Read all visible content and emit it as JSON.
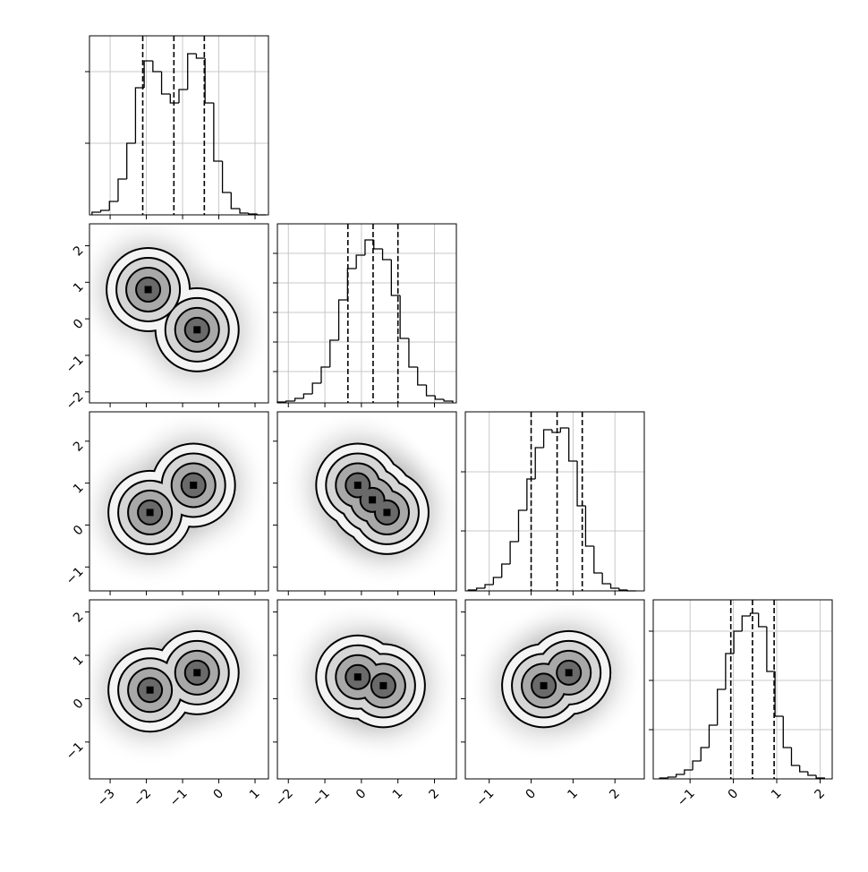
{
  "chart_data": {
    "type": "corner",
    "parameters": [
      {
        "lim": [
          -3.57,
          1.37
        ],
        "ticks": [
          {
            "value": -3,
            "label": "−3"
          },
          {
            "value": -2,
            "label": "−2"
          },
          {
            "value": -1,
            "label": "−1"
          },
          0,
          1
        ],
        "bins": [
          -3.5,
          -3.26,
          -3.02,
          -2.78,
          -2.54,
          -2.3,
          -2.06,
          -1.82,
          -1.58,
          -1.34,
          -1.1,
          -0.86,
          -0.62,
          -0.38,
          -0.14,
          0.1,
          0.34,
          0.58,
          0.82,
          1.06,
          1.3
        ],
        "counts": [
          3,
          5,
          15,
          40,
          80,
          142,
          172,
          160,
          135,
          125,
          140,
          180,
          175,
          125,
          60,
          25,
          7,
          2,
          1,
          0
        ],
        "quantiles": [
          -2.1,
          -1.24,
          -0.4
        ],
        "hist_ylim": [
          0,
          200
        ],
        "hist_yticks": [
          80,
          160
        ]
      },
      {
        "lim": [
          -2.3,
          2.6
        ],
        "ticks": [
          {
            "value": -2,
            "label": "−2"
          },
          {
            "value": -1,
            "label": "−1"
          },
          0,
          1,
          2
        ],
        "bins": [
          -2.3,
          -2.06,
          -1.82,
          -1.58,
          -1.34,
          -1.1,
          -0.86,
          -0.62,
          -0.38,
          -0.14,
          0.1,
          0.34,
          0.58,
          0.82,
          1.06,
          1.3,
          1.54,
          1.78,
          2.02,
          2.26,
          2.5
        ],
        "counts": [
          1,
          2,
          5,
          10,
          22,
          40,
          70,
          115,
          150,
          165,
          182,
          172,
          160,
          120,
          72,
          40,
          20,
          8,
          4,
          2
        ],
        "quantiles": [
          -0.37,
          0.32,
          1.0
        ],
        "hist_ylim": [
          0,
          200
        ],
        "hist_yticks": [
          35,
          68,
          101,
          134,
          167
        ]
      },
      {
        "lim": [
          -1.57,
          2.7
        ],
        "ticks": [
          {
            "value": -1,
            "label": "−1"
          },
          0,
          1,
          2
        ],
        "bins": [
          -1.5,
          -1.3,
          -1.1,
          -0.9,
          -0.7,
          -0.5,
          -0.3,
          -0.1,
          0.1,
          0.3,
          0.5,
          0.7,
          0.9,
          1.1,
          1.3,
          1.5,
          1.7,
          1.9,
          2.1,
          2.3,
          2.5
        ],
        "counts": [
          1,
          3,
          7,
          15,
          30,
          55,
          90,
          125,
          160,
          180,
          177,
          182,
          145,
          95,
          50,
          20,
          8,
          3,
          1,
          0
        ],
        "quantiles": [
          0.0,
          0.62,
          1.22
        ],
        "hist_ylim": [
          0,
          200
        ],
        "hist_yticks": [
          67,
          133
        ]
      },
      {
        "lim": [
          -1.85,
          2.28
        ],
        "ticks": [
          {
            "value": -1,
            "label": "−1"
          },
          0,
          1,
          2
        ],
        "bins": [
          -1.7,
          -1.51,
          -1.32,
          -1.13,
          -0.94,
          -0.75,
          -0.56,
          -0.37,
          -0.18,
          0.01,
          0.2,
          0.39,
          0.58,
          0.77,
          0.96,
          1.15,
          1.34,
          1.53,
          1.72,
          1.91,
          2.1
        ],
        "counts": [
          1,
          2,
          5,
          10,
          20,
          35,
          60,
          100,
          140,
          165,
          182,
          185,
          170,
          120,
          70,
          35,
          15,
          8,
          4,
          1
        ],
        "quantiles": [
          -0.06,
          0.44,
          0.94
        ],
        "hist_ylim": [
          0,
          200
        ],
        "hist_yticks": [
          55,
          110,
          165
        ]
      }
    ],
    "pairs": [
      {
        "clusters": [
          {
            "x": -1.95,
            "y": 0.8
          },
          {
            "x": -0.6,
            "y": -0.3
          }
        ]
      },
      {
        "clusters": [
          {
            "x": -1.9,
            "y": 0.3
          },
          {
            "x": -0.7,
            "y": 0.95
          }
        ]
      },
      {
        "clusters": [
          {
            "x": -0.1,
            "y": 0.95
          },
          {
            "x": 0.3,
            "y": 0.6
          },
          {
            "x": 0.7,
            "y": 0.3
          }
        ]
      },
      {
        "clusters": [
          {
            "x": -1.9,
            "y": 0.2
          },
          {
            "x": -0.6,
            "y": 0.6
          }
        ]
      },
      {
        "clusters": [
          {
            "x": -0.1,
            "y": 0.5
          },
          {
            "x": 0.6,
            "y": 0.3
          }
        ]
      },
      {
        "clusters": [
          {
            "x": 0.3,
            "y": 0.3
          },
          {
            "x": 0.9,
            "y": 0.6
          }
        ]
      }
    ]
  }
}
